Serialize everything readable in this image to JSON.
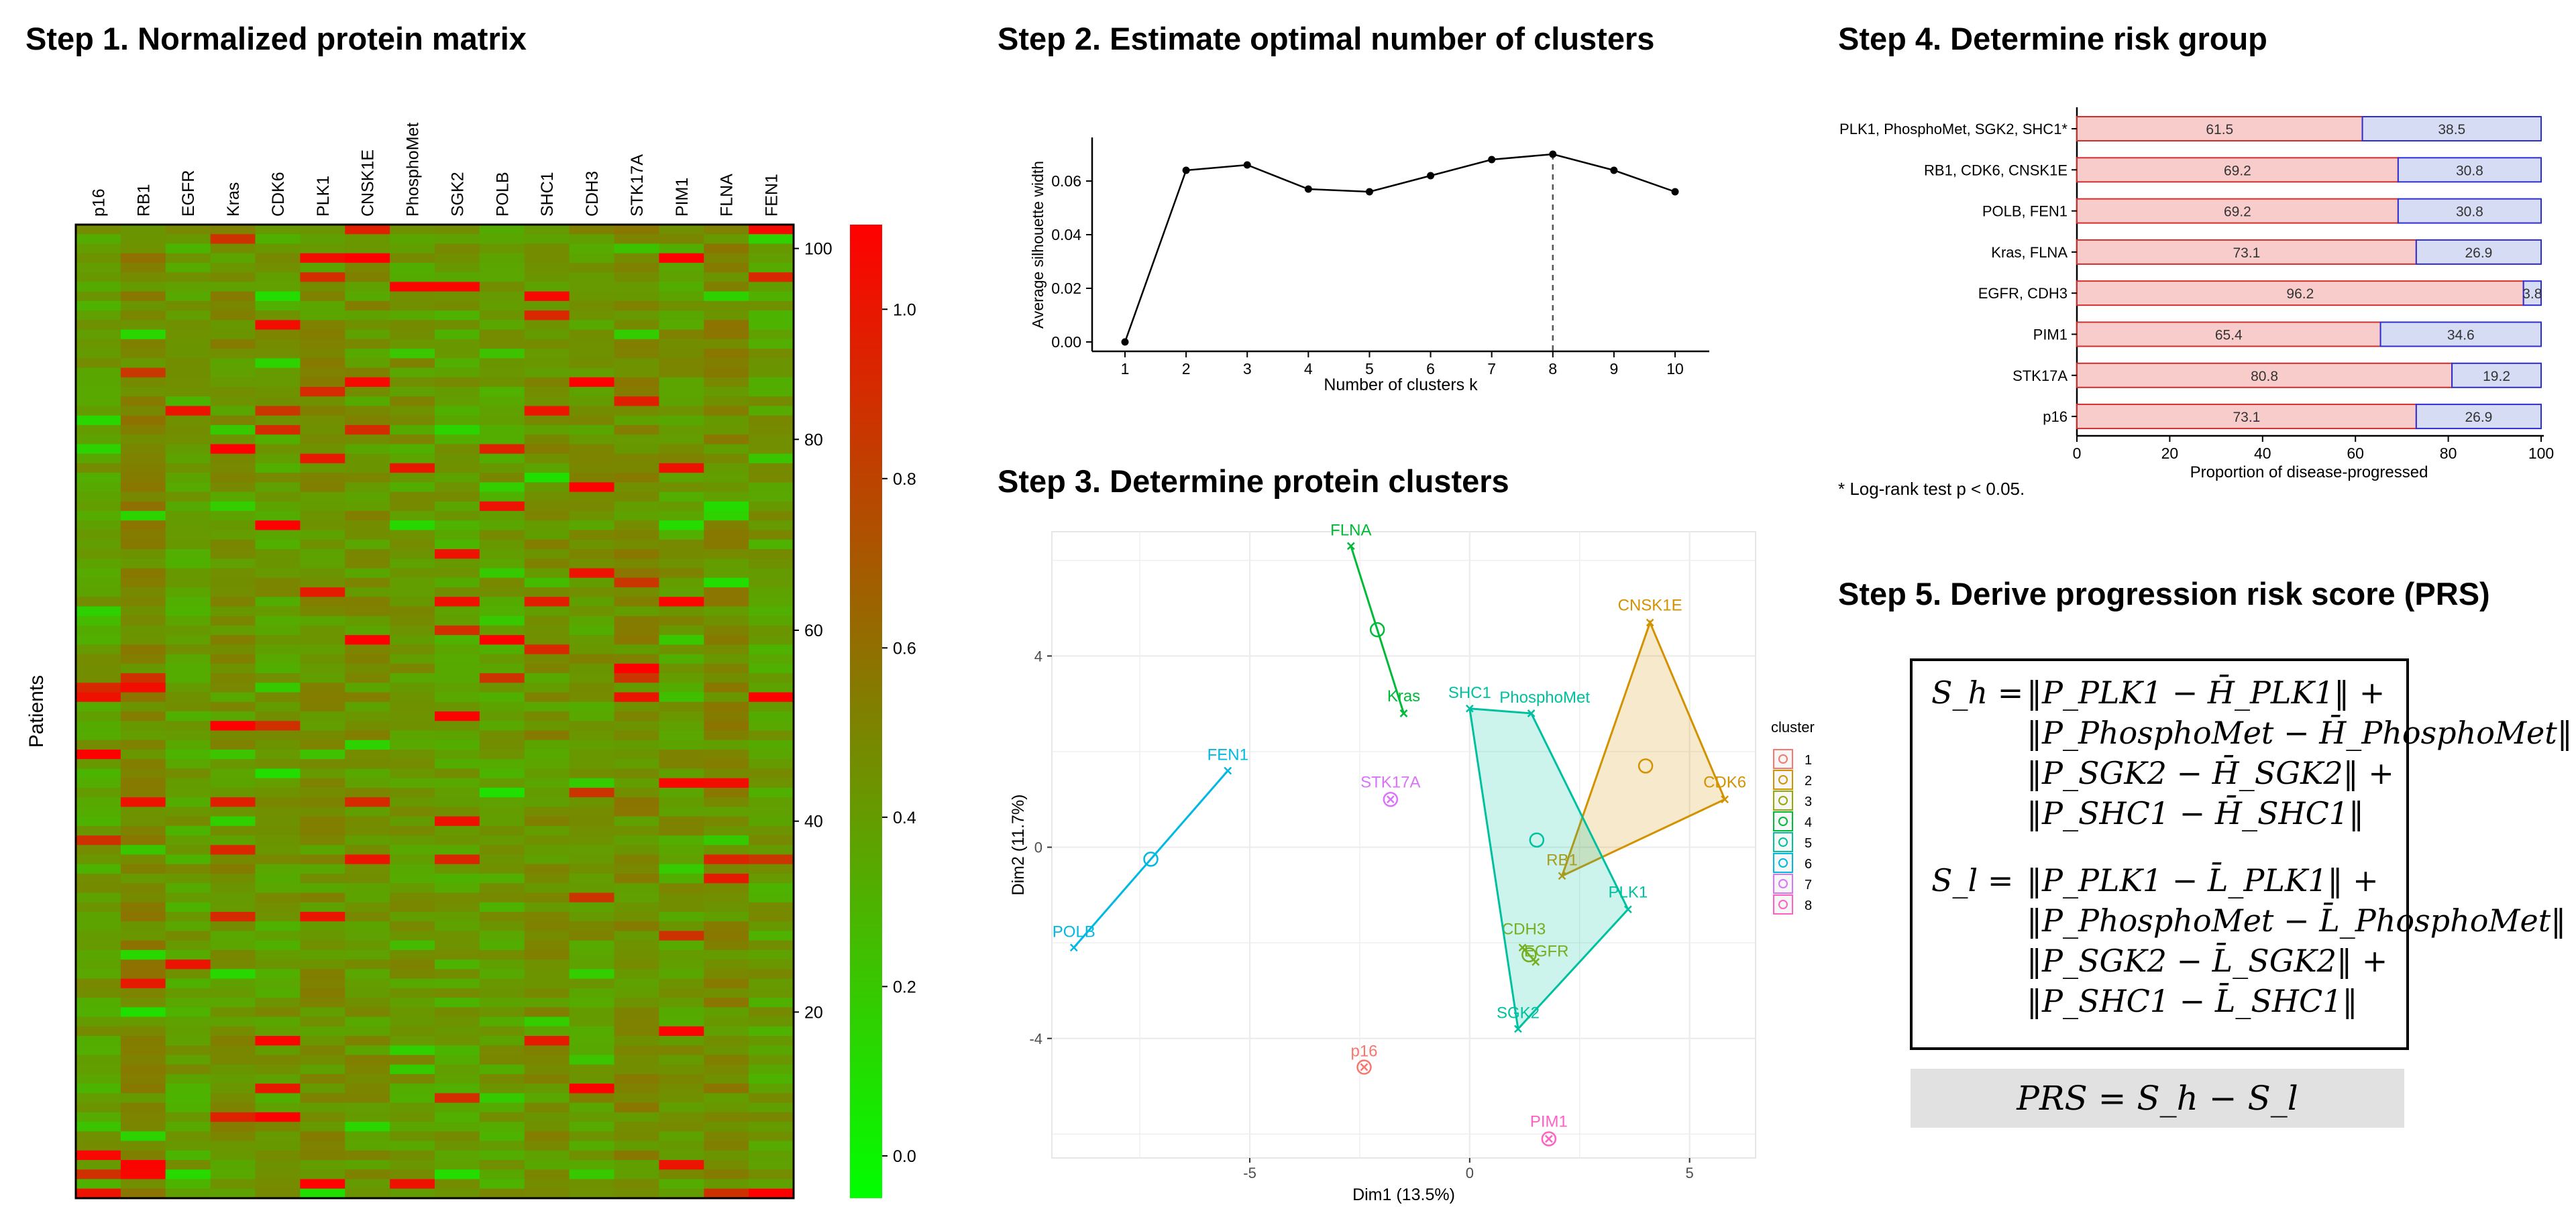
{
  "titles": {
    "step1": "Step 1. Normalized protein matrix",
    "step2": "Step 2. Estimate optimal number of clusters",
    "step3": "Step 3. Determine protein clusters",
    "step4": "Step 4. Determine risk group",
    "step5": "Step 5. Derive progression risk score (PRS)"
  },
  "colors": {
    "low": "#00ff00",
    "mid": "#808000",
    "high": "#ff0000",
    "risk_high": "#f9cccc",
    "risk_low": "#d6dcf3",
    "risk_high_border": "#d22d2d",
    "risk_low_border": "#2d2dd2"
  },
  "chart_data": [
    {
      "type": "heatmap",
      "title": "Normalized protein matrix",
      "columns": [
        "p16",
        "RB1",
        "EGFR",
        "Kras",
        "CDK6",
        "PLK1",
        "CNSK1E",
        "PhosphoMet",
        "SGK2",
        "POLB",
        "SHC1",
        "CDH3",
        "STK17A",
        "PIM1",
        "FLNA",
        "FEN1"
      ],
      "ylabel": "Patients",
      "y_ticks": [
        "100",
        "80",
        "60",
        "40",
        "20"
      ],
      "n_rows": 102,
      "colorbar": {
        "ticks": [
          "1.0",
          "0.8",
          "0.6",
          "0.4",
          "0.2",
          "0.0"
        ],
        "range": [
          -0.05,
          1.1
        ]
      }
    },
    {
      "type": "line",
      "xlabel": "Number of clusters k",
      "ylabel": "Average silhouette width",
      "x": [
        1,
        2,
        3,
        4,
        5,
        6,
        7,
        8,
        9,
        10
      ],
      "y": [
        0.0,
        0.064,
        0.066,
        0.057,
        0.056,
        0.062,
        0.068,
        0.07,
        0.064,
        0.056
      ],
      "x_ticks": [
        "1",
        "2",
        "3",
        "4",
        "5",
        "6",
        "7",
        "8",
        "9",
        "10"
      ],
      "y_ticks": [
        "0.00",
        "0.02",
        "0.04",
        "0.06"
      ],
      "ylim": [
        0,
        0.073
      ],
      "optimal_k": 8
    },
    {
      "type": "scatter",
      "xlabel": "Dim1 (13.5%)",
      "ylabel": "Dim2 (11.7%)",
      "x_ticks": [
        "-5",
        "0",
        "5"
      ],
      "y_ticks": [
        "4",
        "0",
        "-4"
      ],
      "xlim": [
        -9.5,
        6.5
      ],
      "ylim": [
        -6.5,
        6.6
      ],
      "legend_title": "cluster",
      "clusters": [
        {
          "id": "1",
          "color": "#f8766d",
          "points": [
            {
              "label": "p16",
              "x": -2.4,
              "y": -4.6
            }
          ]
        },
        {
          "id": "2",
          "color": "#d39200",
          "points": [
            {
              "label": "CNSK1E",
              "x": 4.1,
              "y": 4.7
            },
            {
              "label": "CDK6",
              "x": 5.8,
              "y": 1.0
            },
            {
              "label": "RB1",
              "x": 2.1,
              "y": -0.6
            }
          ]
        },
        {
          "id": "3",
          "color": "#93aa00",
          "points": [
            {
              "label": "CDH3",
              "x": 1.2,
              "y": -2.1
            },
            {
              "label": "EGFR",
              "x": 1.5,
              "y": -2.4
            }
          ]
        },
        {
          "id": "4",
          "color": "#00ba38",
          "points": [
            {
              "label": "FLNA",
              "x": -2.7,
              "y": 6.3
            },
            {
              "label": "Kras",
              "x": -1.5,
              "y": 2.8
            }
          ]
        },
        {
          "id": "5",
          "color": "#00c19f",
          "points": [
            {
              "label": "SHC1",
              "x": 0.0,
              "y": 2.9
            },
            {
              "label": "PhosphoMet",
              "x": 1.4,
              "y": 2.8
            },
            {
              "label": "PLK1",
              "x": 3.6,
              "y": -1.3
            },
            {
              "label": "SGK2",
              "x": 1.1,
              "y": -3.8
            }
          ]
        },
        {
          "id": "6",
          "color": "#00b9e3",
          "points": [
            {
              "label": "FEN1",
              "x": -5.5,
              "y": 1.6
            },
            {
              "label": "POLB",
              "x": -9.0,
              "y": -2.1
            }
          ]
        },
        {
          "id": "7",
          "color": "#db72fb",
          "points": [
            {
              "label": "STK17A",
              "x": -1.8,
              "y": 1.0
            }
          ]
        },
        {
          "id": "8",
          "color": "#ff61c3",
          "points": [
            {
              "label": "PIM1",
              "x": 1.8,
              "y": -6.1
            }
          ]
        }
      ]
    },
    {
      "type": "bar",
      "subtype": "stacked-horizontal",
      "xlabel": "Proportion of disease-progressed",
      "x_ticks": [
        "0",
        "20",
        "40",
        "60",
        "80",
        "100"
      ],
      "xlim": [
        0,
        100
      ],
      "categories": [
        "PLK1, PhosphoMet, SGK2, SHC1*",
        "RB1, CDK6, CNSK1E",
        "POLB, FEN1",
        "Kras, FLNA",
        "EGFR, CDH3",
        "PIM1",
        "STK17A",
        "p16"
      ],
      "series": [
        {
          "name": "high",
          "values": [
            61.5,
            69.2,
            69.2,
            73.1,
            96.2,
            65.4,
            80.8,
            73.1
          ],
          "labels": [
            "61.5",
            "69.2",
            "69.2",
            "73.1",
            "96.2",
            "65.4",
            "80.8",
            "73.1"
          ]
        },
        {
          "name": "low",
          "values": [
            38.5,
            30.8,
            30.8,
            26.9,
            3.8,
            34.6,
            19.2,
            26.9
          ],
          "labels": [
            "38.5",
            "30.8",
            "30.8",
            "26.9",
            "3.8",
            "34.6",
            "19.2",
            "26.9"
          ]
        }
      ]
    }
  ],
  "step4": {
    "footnote": "* Log-rank test p < 0.05."
  },
  "step5": {
    "sh_lhs": "S_h =",
    "sh_lines": [
      "‖P_PLK1 − H̄_PLK1‖ +",
      "‖P_PhosphoMet − H̄_PhosphoMet‖ +",
      "‖P_SGK2 − H̄_SGK2‖ +",
      "‖P_SHC1 − H̄_SHC1‖"
    ],
    "sl_lhs": "S_l =",
    "sl_lines": [
      "‖P_PLK1 − L̄_PLK1‖ +",
      "‖P_PhosphoMet − L̄_PhosphoMet‖ +",
      "‖P_SGK2 − L̄_SGK2‖ +",
      "‖P_SHC1 − L̄_SHC1‖"
    ],
    "prs": "PRS = S_h − S_l"
  }
}
